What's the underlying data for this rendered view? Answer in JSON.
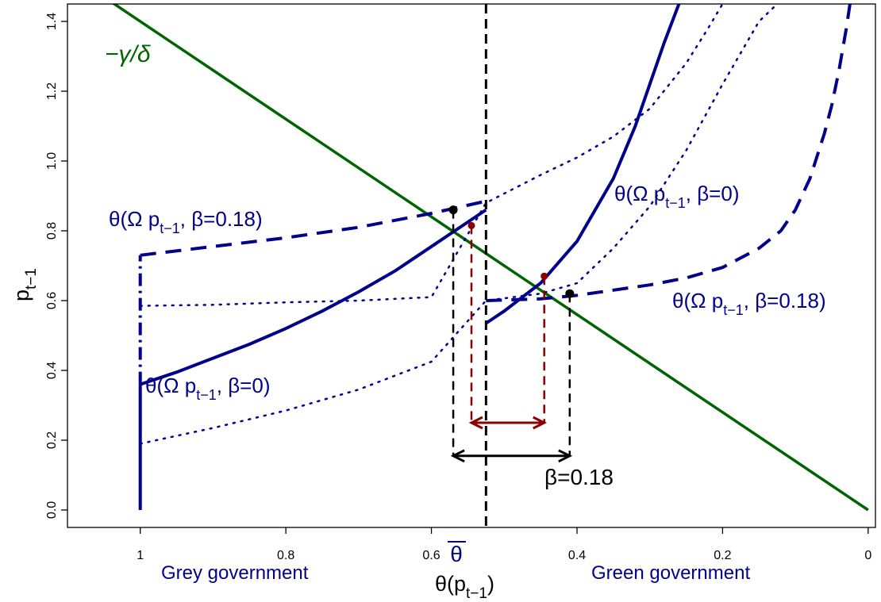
{
  "chart_data": {
    "type": "line",
    "xlabel": "θ(p",
    "xlabel_sub": "t−1",
    "xlabel_close": ")",
    "ylabel": "p",
    "ylabel_sub": "t−1",
    "xlim": [
      1.1,
      -0.01
    ],
    "ylim": [
      -0.05,
      1.45
    ],
    "x_reversed": true,
    "grid": false,
    "x_ticks": [
      1,
      0.8,
      0.6,
      0.4,
      0.2,
      0
    ],
    "x_tick_labels": [
      "1",
      "0.8",
      "0.6",
      "0.4",
      "0.2",
      "0"
    ],
    "y_ticks": [
      0.0,
      0.2,
      0.4,
      0.6,
      0.8,
      1.0,
      1.2,
      1.4
    ],
    "y_tick_labels": [
      "0.0",
      "0.2",
      "0.4",
      "0.6",
      "0.8",
      "1.0",
      "1.2",
      "1.4"
    ],
    "theta_bar": 0.525,
    "theta_bar_label": "θ",
    "region_labels": {
      "grey": "Grey government",
      "green": "Green government"
    },
    "line_label": "−γ/δ",
    "beta_label": "β=0.18",
    "curve_labels": {
      "beta0_upper": "θ(Ω p",
      "beta0_upper_tail": ", β=0)",
      "beta018_left": "θ(Ω p",
      "beta018_left_tail": ", β=0.18)",
      "beta018_right": "θ(Ω p",
      "beta018_right_tail": ", β=0.18)",
      "beta0_lower": "θ(Ω p",
      "beta0_lower_tail": ", β=0)",
      "sub": "t−1"
    },
    "series": [
      {
        "key": "line",
        "x": [
          1.05,
          0
        ],
        "y": [
          1.47,
          0
        ]
      },
      {
        "key": "solid_left",
        "x": [
          1,
          0.95,
          0.9,
          0.85,
          0.8,
          0.75,
          0.7,
          0.65,
          0.6,
          0.55,
          0.525
        ],
        "y": [
          0.36,
          0.395,
          0.435,
          0.475,
          0.52,
          0.57,
          0.625,
          0.685,
          0.755,
          0.825,
          0.86
        ]
      },
      {
        "key": "solid_right",
        "x": [
          0.525,
          0.5,
          0.45,
          0.4,
          0.35,
          0.32,
          0.3,
          0.28,
          0.26,
          0.24
        ],
        "y": [
          0.535,
          0.57,
          0.65,
          0.77,
          0.95,
          1.1,
          1.22,
          1.34,
          1.45,
          1.55
        ]
      },
      {
        "key": "dashed_left",
        "x": [
          1,
          0.9,
          0.8,
          0.7,
          0.6,
          0.525
        ],
        "y": [
          0.73,
          0.755,
          0.78,
          0.81,
          0.85,
          0.885
        ]
      },
      {
        "key": "dashed_right",
        "x": [
          0.525,
          0.45,
          0.4,
          0.35,
          0.3,
          0.25,
          0.2,
          0.15,
          0.12,
          0.1,
          0.08,
          0.06,
          0.05,
          0.04,
          0.03,
          0.025
        ],
        "y": [
          0.6,
          0.605,
          0.615,
          0.63,
          0.645,
          0.665,
          0.695,
          0.75,
          0.8,
          0.86,
          0.95,
          1.08,
          1.16,
          1.26,
          1.38,
          1.45
        ]
      },
      {
        "key": "dotted_upper",
        "x": [
          1,
          0.9,
          0.8,
          0.7,
          0.6,
          0.525,
          0.45,
          0.4,
          0.35,
          0.3,
          0.25,
          0.22,
          0.2
        ],
        "y": [
          0.585,
          0.588,
          0.595,
          0.6,
          0.61,
          0.88,
          0.96,
          1.01,
          1.07,
          1.15,
          1.28,
          1.38,
          1.45
        ]
      },
      {
        "key": "dotted_lower",
        "x": [
          1,
          0.9,
          0.8,
          0.7,
          0.6,
          0.525,
          0.45,
          0.4,
          0.35,
          0.3,
          0.25,
          0.2,
          0.15,
          0.12
        ],
        "y": [
          0.19,
          0.235,
          0.285,
          0.345,
          0.425,
          0.6,
          0.62,
          0.65,
          0.75,
          0.87,
          1.03,
          1.22,
          1.4,
          1.46
        ]
      },
      {
        "key": "vert_solid",
        "x": [
          1,
          1
        ],
        "y": [
          0,
          0.36
        ]
      },
      {
        "key": "vert_dashdot",
        "x": [
          1,
          1
        ],
        "y": [
          0.36,
          0.73
        ]
      }
    ],
    "points": [
      {
        "key": "black_left",
        "x": 0.57,
        "y": 0.86
      },
      {
        "key": "black_right",
        "x": 0.41,
        "y": 0.62
      },
      {
        "key": "red_left",
        "x": 0.545,
        "y": 0.815
      },
      {
        "key": "red_right",
        "x": 0.445,
        "y": 0.67
      }
    ],
    "black_arrow": {
      "x1": 0.57,
      "x2": 0.41,
      "y": 0.155
    },
    "red_arrow": {
      "x1": 0.545,
      "x2": 0.445,
      "y": 0.25
    },
    "colors": {
      "navy": "#00008B",
      "green": "#006400",
      "darkred": "#8B0000",
      "black": "#000000"
    }
  }
}
